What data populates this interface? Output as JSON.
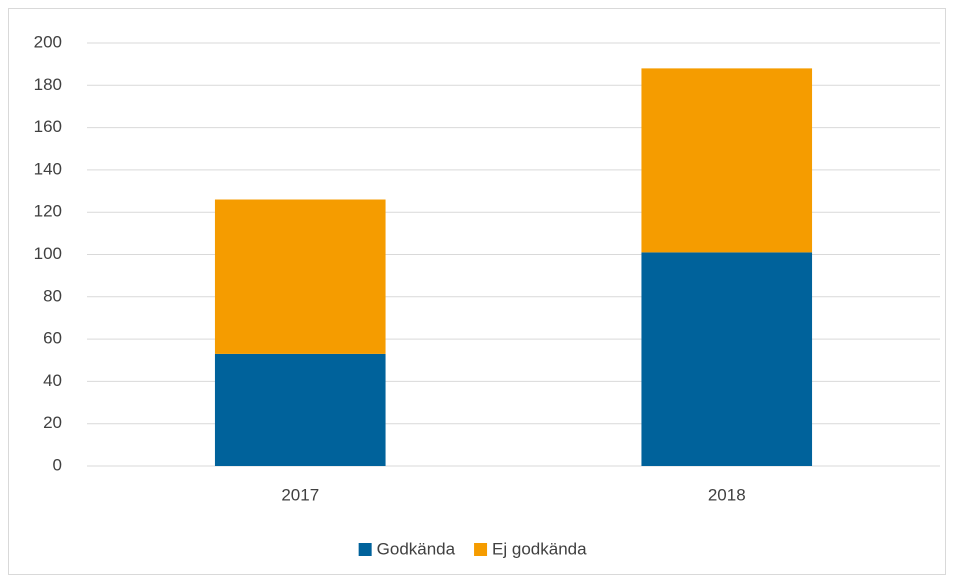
{
  "chart_data": {
    "type": "stacked_bar",
    "categories": [
      "2017",
      "2018"
    ],
    "series": [
      {
        "name": "Godkända",
        "color": "#00629b",
        "values": [
          53,
          101
        ]
      },
      {
        "name": "Ej godkända",
        "color": "#f59c00",
        "values": [
          73,
          87
        ]
      }
    ],
    "ylim": [
      0,
      200
    ],
    "yticks": [
      0,
      20,
      40,
      60,
      80,
      100,
      120,
      140,
      160,
      180,
      200
    ],
    "grid": true,
    "legend": "bottom"
  }
}
